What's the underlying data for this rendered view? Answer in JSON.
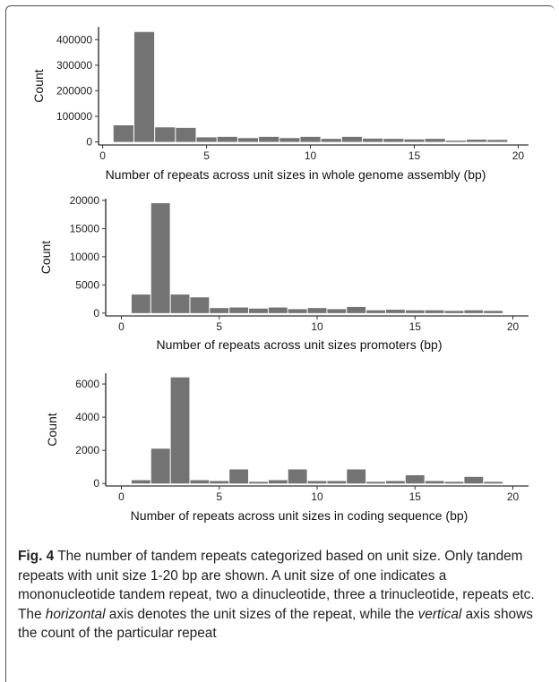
{
  "colors": {
    "bar": "#737373",
    "axis": "#000000"
  },
  "caption": {
    "label": "Fig. 4",
    "part1": " The number of tandem repeats categorized based on unit size. Only tandem repeats with unit size 1-20 bp are shown. A unit size of one indicates a mononucleotide tandem repeat, two a dinucleotide, three a trinucleotide, repeats etc. The ",
    "horizontal": "horizontal",
    "part2": " axis denotes the unit sizes of the repeat, while the ",
    "vertical": "vertical",
    "part3": " axis shows the count of the particular repeat"
  },
  "chart_data": [
    {
      "type": "bar",
      "xlabel": "Number of repeats across unit sizes in whole genome assembly (bp)",
      "ylabel": "Count",
      "x": [
        1,
        2,
        3,
        4,
        5,
        6,
        7,
        8,
        9,
        10,
        11,
        12,
        13,
        14,
        15,
        16,
        17,
        18,
        19
      ],
      "values": [
        65000,
        430000,
        57000,
        55000,
        18000,
        20000,
        15000,
        20000,
        15000,
        20000,
        12000,
        20000,
        13000,
        12000,
        10000,
        12000,
        5000,
        9000,
        8000
      ],
      "xlim": [
        -0.2,
        20.5
      ],
      "ylim": [
        -12000,
        450000
      ],
      "xticks": [
        0,
        5,
        10,
        15,
        20
      ],
      "yticks": [
        0,
        100000,
        200000,
        300000,
        400000
      ],
      "ytick_labels": [
        "0",
        "100000",
        "200000",
        "300000",
        "400000"
      ]
    },
    {
      "type": "bar",
      "xlabel": "Number of repeats across unit sizes promoters (bp)",
      "ylabel": "Count",
      "x": [
        1,
        2,
        3,
        4,
        5,
        6,
        7,
        8,
        9,
        10,
        11,
        12,
        13,
        14,
        15,
        16,
        17,
        18,
        19
      ],
      "values": [
        3300,
        19500,
        3300,
        2800,
        900,
        1000,
        800,
        1000,
        700,
        900,
        700,
        1100,
        500,
        600,
        500,
        500,
        400,
        500,
        400
      ],
      "xlim": [
        -0.8,
        20.8
      ],
      "ylim": [
        -500,
        20300
      ],
      "xticks": [
        0,
        5,
        10,
        15,
        20
      ],
      "yticks": [
        0,
        5000,
        10000,
        15000,
        20000
      ],
      "ytick_labels": [
        "0",
        "5000",
        "10000",
        "15000",
        "20000"
      ]
    },
    {
      "type": "bar",
      "xlabel": "Number of repeats across unit sizes in coding sequence (bp)",
      "ylabel": "Count",
      "x": [
        1,
        2,
        3,
        4,
        5,
        6,
        7,
        8,
        9,
        10,
        11,
        12,
        13,
        14,
        15,
        16,
        17,
        18,
        19
      ],
      "values": [
        200,
        2100,
        6400,
        200,
        150,
        850,
        100,
        200,
        850,
        150,
        150,
        850,
        100,
        150,
        500,
        150,
        100,
        400,
        100
      ],
      "xlim": [
        -0.8,
        20.8
      ],
      "ylim": [
        -150,
        6650
      ],
      "xticks": [
        0,
        5,
        10,
        15,
        20
      ],
      "yticks": [
        0,
        2000,
        4000,
        6000
      ],
      "ytick_labels": [
        "0",
        "2000",
        "4000",
        "6000"
      ]
    }
  ]
}
